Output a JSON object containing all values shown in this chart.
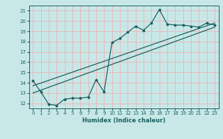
{
  "title": "",
  "xlabel": "Humidex (Indice chaleur)",
  "ylabel": "",
  "bg_color": "#c8e8e8",
  "grid_color": "#e8b8b8",
  "line_color": "#1a6060",
  "xlim": [
    -0.5,
    23.5
  ],
  "ylim": [
    11.5,
    21.5
  ],
  "xticks": [
    0,
    1,
    2,
    3,
    4,
    5,
    6,
    7,
    8,
    9,
    10,
    11,
    12,
    13,
    14,
    15,
    16,
    17,
    18,
    19,
    20,
    21,
    22,
    23
  ],
  "yticks": [
    12,
    13,
    14,
    15,
    16,
    17,
    18,
    19,
    20,
    21
  ],
  "series1_x": [
    0,
    1,
    2,
    3,
    4,
    5,
    6,
    7,
    8,
    9,
    10,
    11,
    12,
    13,
    14,
    15,
    16,
    17,
    18,
    19,
    20,
    21,
    22,
    23
  ],
  "series1_y": [
    14.2,
    13.1,
    11.9,
    11.8,
    12.4,
    12.5,
    12.5,
    12.6,
    14.3,
    13.1,
    17.9,
    18.3,
    18.9,
    19.5,
    19.1,
    19.8,
    21.1,
    19.7,
    19.6,
    19.6,
    19.5,
    19.4,
    19.8,
    19.6
  ],
  "series2_x": [
    0,
    23
  ],
  "series2_y": [
    13.0,
    19.4
  ],
  "series3_x": [
    0,
    23
  ],
  "series3_y": [
    13.7,
    19.8
  ]
}
